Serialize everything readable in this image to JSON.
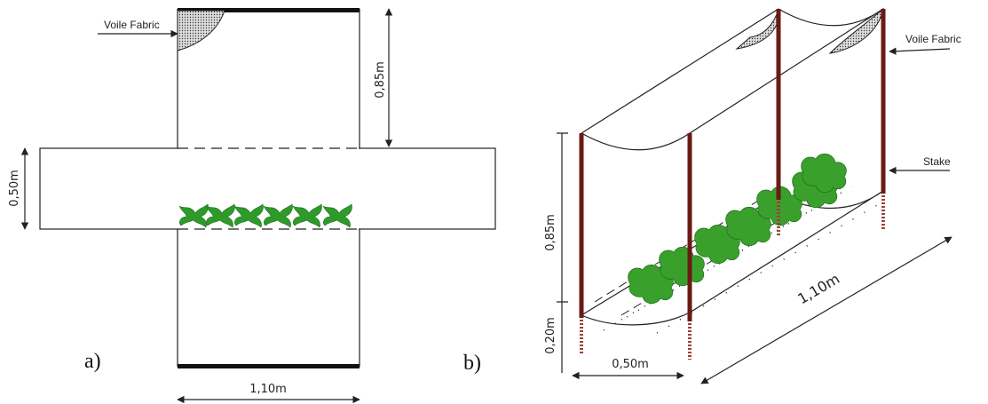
{
  "panel_a": {
    "label": "a)",
    "fabric_label": "Voile Fabric",
    "dim_cover_height": "0,85m",
    "dim_row_width": "0,50m",
    "dim_length": "1,10m"
  },
  "panel_b": {
    "label": "b)",
    "fabric_label": "Voile Fabric",
    "stake_label": "Stake",
    "dim_height": "0,85m",
    "dim_depth": "0,20m",
    "dim_width": "0,50m",
    "dim_length": "1,10m"
  }
}
